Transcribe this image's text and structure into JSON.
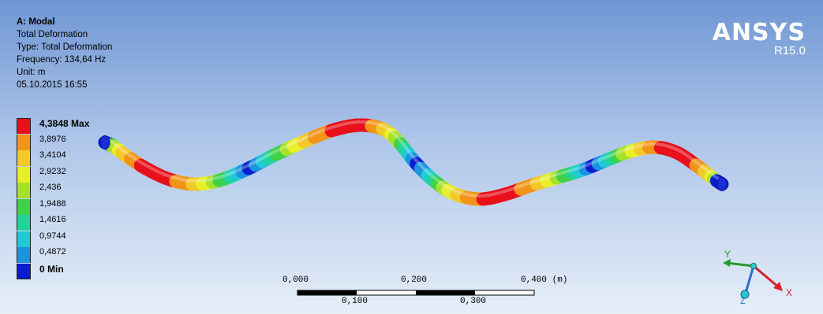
{
  "header": {
    "title": "A: Modal",
    "result_name": "Total Deformation",
    "type_line": "Type: Total Deformation",
    "frequency_line": "Frequency: 134,64 Hz",
    "unit_line": "Unit: m",
    "timestamp": "05.10.2015 16:55"
  },
  "brand": {
    "name": "ANSYS",
    "version": "R15.0"
  },
  "legend": {
    "max_label": "4,3848 Max",
    "min_label": "0 Min",
    "levels": [
      {
        "label": "4,3848 Max",
        "color": "#e8101a"
      },
      {
        "label": "3,8976",
        "color": "#f3941a"
      },
      {
        "label": "3,4104",
        "color": "#f2c92a"
      },
      {
        "label": "2,9232",
        "color": "#e7ef2a"
      },
      {
        "label": "2,436",
        "color": "#a6e12c"
      },
      {
        "label": "1,9488",
        "color": "#3dd24a"
      },
      {
        "label": "1,4616",
        "color": "#20d49a"
      },
      {
        "label": "0,9744",
        "color": "#20c8d8"
      },
      {
        "label": "0,4872",
        "color": "#1c92e0"
      },
      {
        "label": "0 Min",
        "color": "#0a1cd0"
      }
    ]
  },
  "scale_bar": {
    "top_labels": [
      "0,000",
      "0,200",
      "0,400 (m)"
    ],
    "bottom_labels": [
      "0,100",
      "0,300"
    ]
  },
  "triad": {
    "x_label": "X",
    "y_label": "Y",
    "z_label": "Z",
    "x_color": "#d8202a",
    "y_color": "#2a9a2a",
    "z_color": "#2a6ad0"
  }
}
